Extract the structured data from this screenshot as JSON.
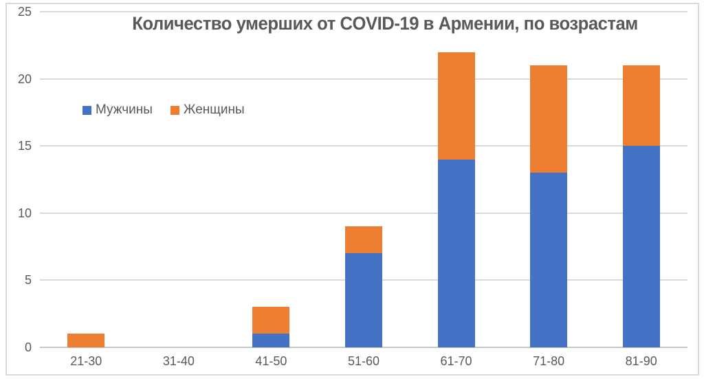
{
  "chart_data": {
    "type": "bar",
    "stacked": true,
    "title": "Количество умерших от COVID-19 в Армении, по возрастам",
    "categories": [
      "21-30",
      "31-40",
      "41-50",
      "51-60",
      "61-70",
      "71-80",
      "81-90"
    ],
    "series": [
      {
        "name": "Мужчины",
        "color": "#4472C4",
        "values": [
          0,
          0,
          1,
          7,
          14,
          13,
          15
        ]
      },
      {
        "name": "Женщины",
        "color": "#ED7D31",
        "values": [
          1,
          0,
          2,
          2,
          8,
          8,
          6
        ]
      }
    ],
    "totals": [
      1,
      0,
      3,
      9,
      22,
      21,
      21
    ],
    "xlabel": "",
    "ylabel": "",
    "ylim": [
      0,
      25
    ],
    "yticks": [
      0,
      5,
      10,
      15,
      20,
      25
    ],
    "grid": true,
    "legend_position": "inside-upper-left"
  },
  "colors": {
    "male_bar": "#4472C4",
    "female_bar": "#ED7D31",
    "gridline": "#D9D9D9",
    "zero_axis": "#C6C6C6",
    "text": "#595959",
    "frame_border": "#D9D9D9",
    "background": "#FFFFFF"
  }
}
